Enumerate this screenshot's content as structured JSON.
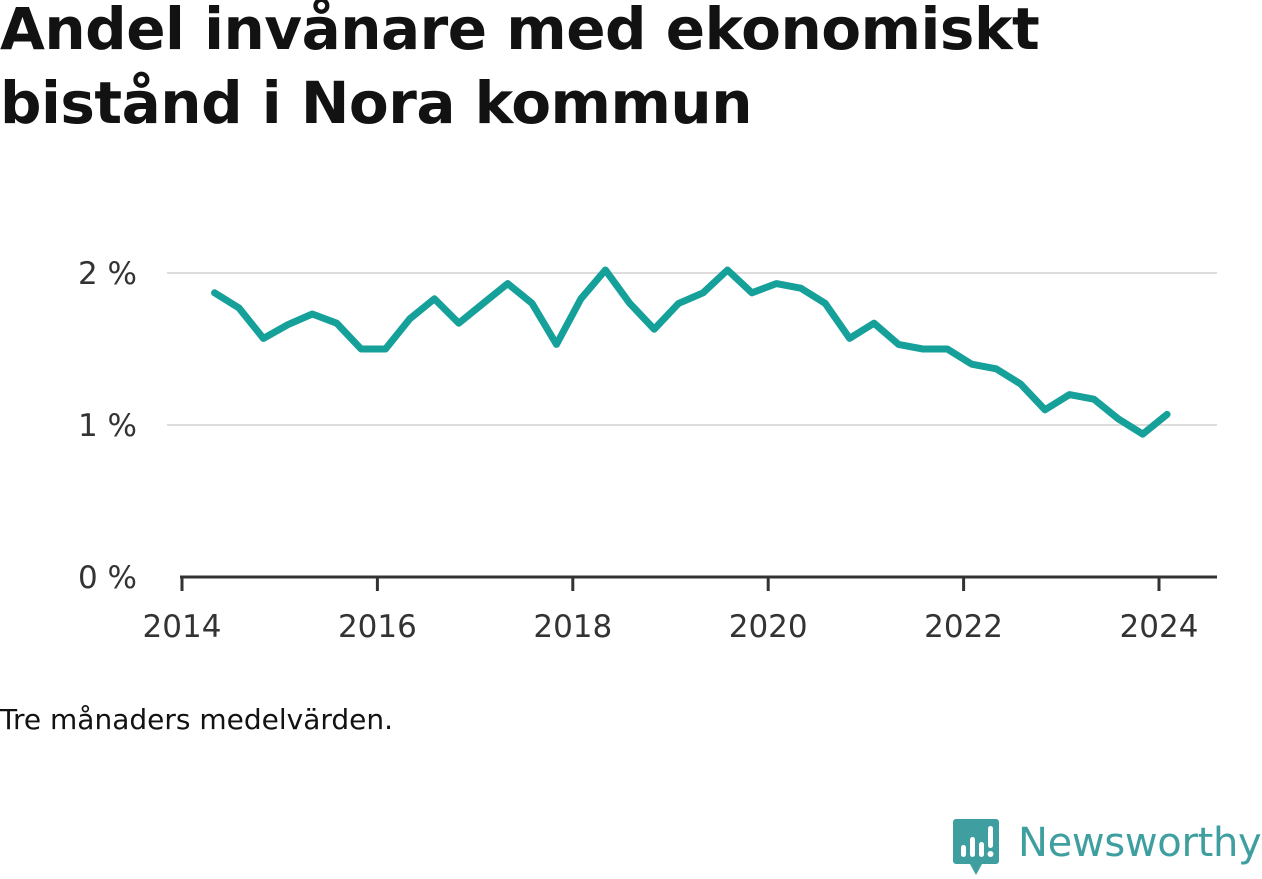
{
  "title": "Andel invånare med ekonomiskt bistånd i Nora kommun",
  "note": "Tre månaders medelvärden.",
  "brand": {
    "name": "Newsworthy",
    "color": "#3f9fa0",
    "icon": "bar-chart-speech-bubble-icon"
  },
  "colors": {
    "line": "#16a09a",
    "grid": "#dddddd",
    "axis": "#333333"
  },
  "chart_data": {
    "type": "line",
    "title": "Andel invånare med ekonomiskt bistånd i Nora kommun",
    "xlabel": "",
    "ylabel": "",
    "x_ticks": [
      "2014",
      "2016",
      "2018",
      "2020",
      "2022",
      "2024"
    ],
    "y_ticks": [
      "0 %",
      "1 %",
      "2 %"
    ],
    "ylim": [
      0,
      2.0
    ],
    "xlim": [
      "2014-01",
      "2024-06"
    ],
    "grid": true,
    "legend": "none",
    "series": [
      {
        "x": [
          "2014-05",
          "2014-08",
          "2014-11",
          "2015-02",
          "2015-05",
          "2015-08",
          "2015-11",
          "2016-02",
          "2016-05",
          "2016-08",
          "2016-11",
          "2017-02",
          "2017-05",
          "2017-08",
          "2017-11",
          "2018-02",
          "2018-05",
          "2018-08",
          "2018-11",
          "2019-02",
          "2019-05",
          "2019-08",
          "2019-11",
          "2020-02",
          "2020-05",
          "2020-08",
          "2020-11",
          "2021-02",
          "2021-05",
          "2021-08",
          "2021-11",
          "2022-02",
          "2022-05",
          "2022-08",
          "2022-11",
          "2023-02",
          "2023-05",
          "2023-08",
          "2023-11",
          "2024-02"
        ],
        "values": [
          1.87,
          1.77,
          1.57,
          1.66,
          1.73,
          1.67,
          1.5,
          1.5,
          1.7,
          1.83,
          1.67,
          1.8,
          1.93,
          1.8,
          1.53,
          1.83,
          2.02,
          1.8,
          1.63,
          1.8,
          1.87,
          2.02,
          1.87,
          1.93,
          1.9,
          1.8,
          1.57,
          1.67,
          1.53,
          1.5,
          1.5,
          1.4,
          1.37,
          1.27,
          1.1,
          1.2,
          1.17,
          1.04,
          0.94,
          1.07
        ]
      }
    ]
  }
}
